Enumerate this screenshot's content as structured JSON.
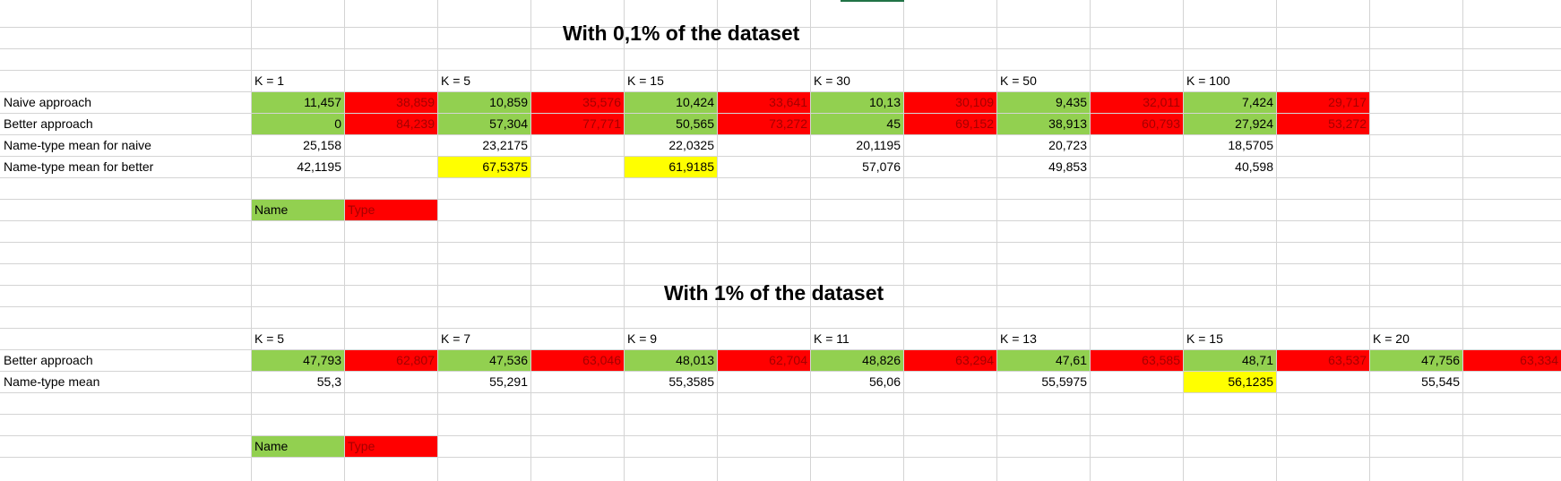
{
  "sheet": {
    "section1": {
      "title": "With 0,1% of the dataset",
      "k_headers": [
        "K = 1",
        "K = 5",
        "K = 15",
        "K = 30",
        "K = 50",
        "K = 100"
      ],
      "rows": [
        {
          "label": "Naive approach",
          "name_vals": [
            "11,457",
            "10,859",
            "10,424",
            "10,13",
            "9,435",
            "7,424"
          ],
          "type_vals": [
            "38,859",
            "35,576",
            "33,641",
            "30,109",
            "32,011",
            "29,717"
          ]
        },
        {
          "label": "Better approach",
          "name_vals": [
            "0",
            "57,304",
            "50,565",
            "45",
            "38,913",
            "27,924"
          ],
          "type_vals": [
            "84,239",
            "77,771",
            "73,272",
            "69,152",
            "60,793",
            "53,272"
          ]
        }
      ],
      "mean_rows": [
        {
          "label": "Name-type mean for naive",
          "vals": [
            "25,158",
            "23,2175",
            "22,0325",
            "20,1195",
            "20,723",
            "18,5705"
          ],
          "highlight": [
            false,
            false,
            false,
            false,
            false,
            false
          ]
        },
        {
          "label": "Name-type mean for better",
          "vals": [
            "42,1195",
            "67,5375",
            "61,9185",
            "57,076",
            "49,853",
            "40,598"
          ],
          "highlight": [
            false,
            true,
            true,
            false,
            false,
            false
          ]
        }
      ],
      "legend": {
        "name": "Name",
        "type": "Type"
      }
    },
    "section2": {
      "title": "With 1% of the dataset",
      "k_headers": [
        "K = 5",
        "K = 7",
        "K = 9",
        "K = 11",
        "K = 13",
        "K = 15",
        "K = 20"
      ],
      "rows": [
        {
          "label": "Better approach",
          "name_vals": [
            "47,793",
            "47,536",
            "48,013",
            "48,826",
            "47,61",
            "48,71",
            "47,756"
          ],
          "type_vals": [
            "62,807",
            "63,046",
            "62,704",
            "63,294",
            "63,585",
            "63,537",
            "63,334"
          ]
        }
      ],
      "mean_rows": [
        {
          "label": "Name-type mean",
          "vals": [
            "55,3",
            "55,291",
            "55,3585",
            "56,06",
            "55,5975",
            "56,1235",
            "55,545"
          ],
          "highlight": [
            false,
            false,
            false,
            false,
            false,
            true,
            false
          ]
        }
      ],
      "legend": {
        "name": "Name",
        "type": "Type"
      }
    },
    "colors": {
      "name_fill": "#92d050",
      "type_fill": "#ff0000",
      "type_text": "#a50000",
      "highlight_fill": "#ffff00",
      "gridline": "#d4d4d4",
      "active_tab": "#217346"
    }
  }
}
